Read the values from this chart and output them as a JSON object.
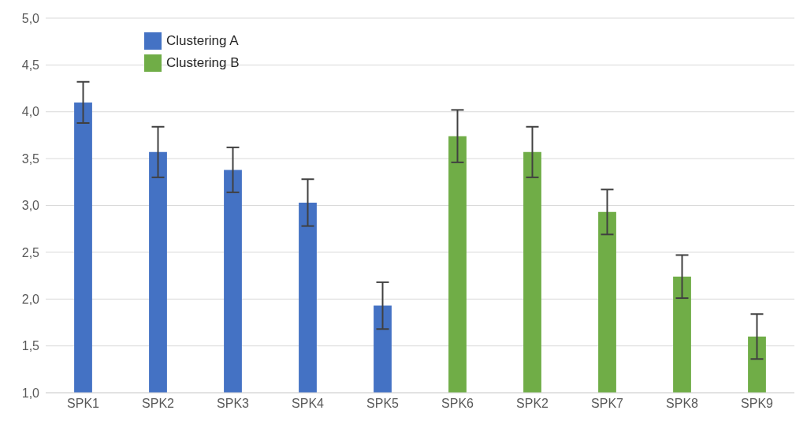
{
  "chart_data": {
    "type": "bar",
    "categories": [
      "SPK1",
      "SPK2",
      "SPK3",
      "SPK4",
      "SPK5",
      "SPK6",
      "SPK2",
      "SPK7",
      "SPK8",
      "SPK9"
    ],
    "series": [
      {
        "name": "Clustering A",
        "color": "#4472c4",
        "values": [
          4.1,
          3.57,
          3.38,
          3.03,
          1.93,
          null,
          null,
          null,
          null,
          null
        ],
        "errors": [
          0.22,
          0.27,
          0.24,
          0.25,
          0.25,
          null,
          null,
          null,
          null,
          null
        ]
      },
      {
        "name": "Clustering B",
        "color": "#70ad47",
        "values": [
          null,
          null,
          null,
          null,
          null,
          3.74,
          3.57,
          2.93,
          2.24,
          1.6
        ],
        "errors": [
          null,
          null,
          null,
          null,
          null,
          0.28,
          0.27,
          0.24,
          0.23,
          0.24
        ]
      }
    ],
    "stacked": true,
    "ylim": [
      1,
      5
    ],
    "yticks": [
      {
        "value": 1,
        "label": "1,0"
      },
      {
        "value": 1.5,
        "label": "1,5"
      },
      {
        "value": 2,
        "label": "2,0"
      },
      {
        "value": 2.5,
        "label": "2,5"
      },
      {
        "value": 3,
        "label": "3,0"
      },
      {
        "value": 3.5,
        "label": "3,5"
      },
      {
        "value": 4,
        "label": "4,0"
      },
      {
        "value": 4.5,
        "label": "4,5"
      },
      {
        "value": 5,
        "label": "5,0"
      }
    ],
    "grid": "y",
    "legend": "top left"
  }
}
